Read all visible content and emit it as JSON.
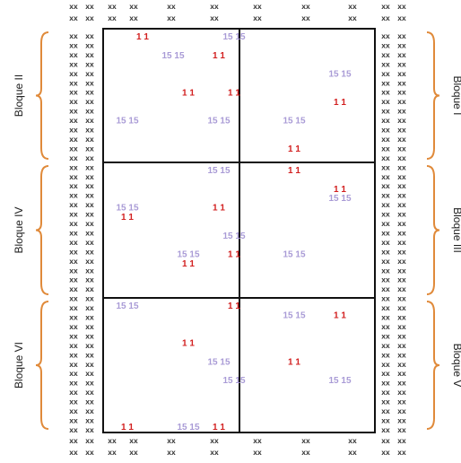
{
  "diagram": {
    "filler_text": "xx",
    "filler_pair": "xx xx",
    "blocks": [
      {
        "label": "Bloque II",
        "side": "left",
        "row": 0
      },
      {
        "label": "Bloque IV",
        "side": "left",
        "row": 1
      },
      {
        "label": "Bloque VI",
        "side": "left",
        "row": 2
      },
      {
        "label": "Bloque I",
        "side": "right",
        "row": 0
      },
      {
        "label": "Bloque III",
        "side": "right",
        "row": 1
      },
      {
        "label": "Bloque V",
        "side": "right",
        "row": 2
      }
    ],
    "colors": {
      "grid": "#111111",
      "filler": "#333333",
      "red": "#d21f1f",
      "lavender": "#a99bd6",
      "brace": "#e08a3a"
    },
    "markers": [
      {
        "block": "Bloque II",
        "label": "1 1",
        "color": "red",
        "col": 2,
        "row": 0
      },
      {
        "block": "Bloque II",
        "label": "15 15",
        "color": "lavender",
        "col": 4,
        "row": 2
      },
      {
        "block": "Bloque II",
        "label": "1 1",
        "color": "red",
        "col": 7,
        "row": 2
      },
      {
        "block": "Bloque II",
        "label": "1 1",
        "color": "red",
        "col": 5,
        "row": 6
      },
      {
        "block": "Bloque II",
        "label": "15 15",
        "color": "lavender",
        "col": 1,
        "row": 9
      },
      {
        "block": "Bloque II",
        "label": "15 15",
        "color": "lavender",
        "col": 7,
        "row": 9
      },
      {
        "block": "Bloque I",
        "label": "15 15",
        "color": "lavender",
        "col": 8,
        "row": 0
      },
      {
        "block": "Bloque I",
        "label": "15 15",
        "color": "lavender",
        "col": 15,
        "row": 4
      },
      {
        "block": "Bloque I",
        "label": "1 1",
        "color": "red",
        "col": 8,
        "row": 6
      },
      {
        "block": "Bloque I",
        "label": "1 1",
        "color": "red",
        "col": 15,
        "row": 7
      },
      {
        "block": "Bloque I",
        "label": "15 15",
        "color": "lavender",
        "col": 12,
        "row": 9
      },
      {
        "block": "Bloque I",
        "label": "1 1",
        "color": "red",
        "col": 12,
        "row": 12
      },
      {
        "block": "Bloque IV",
        "label": "15 15",
        "color": "lavender",
        "col": 7,
        "row": 0
      },
      {
        "block": "Bloque IV",
        "label": "15 15",
        "color": "lavender",
        "col": 1,
        "row": 4
      },
      {
        "block": "Bloque IV",
        "label": "1 1",
        "color": "red",
        "col": 7,
        "row": 4
      },
      {
        "block": "Bloque IV",
        "label": "1 1",
        "color": "red",
        "col": 1,
        "row": 5
      },
      {
        "block": "Bloque IV",
        "label": "15 15",
        "color": "lavender",
        "col": 5,
        "row": 9
      },
      {
        "block": "Bloque IV",
        "label": "1 1",
        "color": "red",
        "col": 5,
        "row": 10
      },
      {
        "block": "Bloque III",
        "label": "1 1",
        "color": "red",
        "col": 12,
        "row": 0
      },
      {
        "block": "Bloque III",
        "label": "1 1",
        "color": "red",
        "col": 15,
        "row": 2
      },
      {
        "block": "Bloque III",
        "label": "15 15",
        "color": "lavender",
        "col": 15,
        "row": 3
      },
      {
        "block": "Bloque III",
        "label": "15 15",
        "color": "lavender",
        "col": 8,
        "row": 7
      },
      {
        "block": "Bloque III",
        "label": "1 1",
        "color": "red",
        "col": 8,
        "row": 9
      },
      {
        "block": "Bloque III",
        "label": "15 15",
        "color": "lavender",
        "col": 12,
        "row": 9
      },
      {
        "block": "Bloque VI",
        "label": "15 15",
        "color": "lavender",
        "col": 1,
        "row": 0
      },
      {
        "block": "Bloque VI",
        "label": "1 1",
        "color": "red",
        "col": 5,
        "row": 4
      },
      {
        "block": "Bloque VI",
        "label": "15 15",
        "color": "lavender",
        "col": 7,
        "row": 6
      },
      {
        "block": "Bloque VI",
        "label": "1 1",
        "color": "red",
        "col": 1,
        "row": 13
      },
      {
        "block": "Bloque VI",
        "label": "15 15",
        "color": "lavender",
        "col": 5,
        "row": 13
      },
      {
        "block": "Bloque VI",
        "label": "1 1",
        "color": "red",
        "col": 7,
        "row": 13
      },
      {
        "block": "Bloque V",
        "label": "1 1",
        "color": "red",
        "col": 8,
        "row": 0
      },
      {
        "block": "Bloque V",
        "label": "15 15",
        "color": "lavender",
        "col": 12,
        "row": 1
      },
      {
        "block": "Bloque V",
        "label": "1 1",
        "color": "red",
        "col": 15,
        "row": 1
      },
      {
        "block": "Bloque V",
        "label": "1 1",
        "color": "red",
        "col": 12,
        "row": 6
      },
      {
        "block": "Bloque V",
        "label": "15 15",
        "color": "lavender",
        "col": 8,
        "row": 8
      },
      {
        "block": "Bloque V",
        "label": "15 15",
        "color": "lavender",
        "col": 15,
        "row": 8
      }
    ]
  }
}
